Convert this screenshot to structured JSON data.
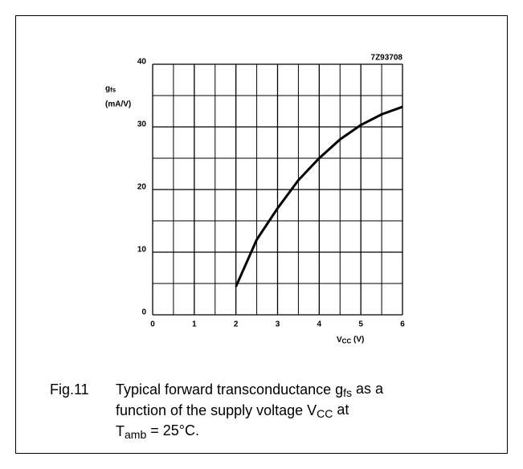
{
  "chart_data": {
    "type": "line",
    "code": "7Z93708",
    "y_label": [
      "g",
      "fs"
    ],
    "y_unit": "(mA/V)",
    "x_label": [
      "V",
      "CC",
      " (V)"
    ],
    "x": [
      2,
      2.5,
      3,
      3.5,
      4,
      4.5,
      5,
      5.5,
      6
    ],
    "values": [
      4.5,
      12,
      17,
      21.5,
      25,
      28,
      30.3,
      32,
      33.2
    ],
    "color": "#000000",
    "xlim": [
      0,
      6
    ],
    "xticks": [
      0,
      1,
      2,
      3,
      4,
      5,
      6
    ],
    "ylim": [
      0,
      40
    ],
    "yticks": [
      0,
      10,
      20,
      30,
      40
    ],
    "grid": true,
    "caption": {
      "number": "Fig.11",
      "lines": [
        [
          "Typical forward transconductance g",
          "fs",
          " as a"
        ],
        [
          "function of the supply voltage V",
          "CC",
          " at"
        ],
        [
          "T",
          "amb",
          " = 25°C."
        ]
      ]
    }
  }
}
